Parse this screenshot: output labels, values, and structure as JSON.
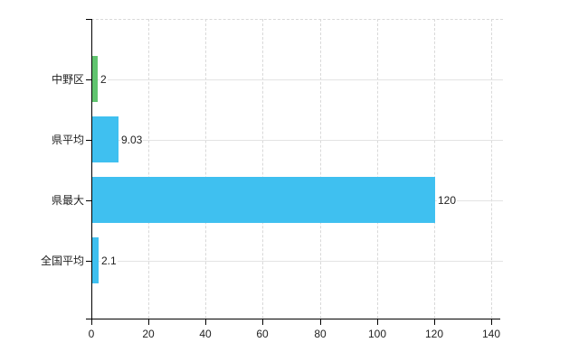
{
  "chart_data": {
    "type": "bar",
    "orientation": "horizontal",
    "title": "",
    "xlabel": "",
    "ylabel": "",
    "categories": [
      "中野区",
      "県平均",
      "県最大",
      "全国平均"
    ],
    "values": [
      2,
      9.03,
      120,
      2.1
    ],
    "value_labels": [
      "2",
      "9.03",
      "120",
      "2.1"
    ],
    "bar_colors": [
      "#61c46f",
      "#3fc0f0",
      "#3fc0f0",
      "#3fc0f0"
    ],
    "xlim": [
      0,
      140
    ],
    "x_ticks": [
      0,
      20,
      40,
      60,
      80,
      100,
      120,
      140
    ],
    "x_tick_labels": [
      "0",
      "20",
      "40",
      "60",
      "80",
      "100",
      "120",
      "140"
    ],
    "grid": true,
    "legend": false,
    "background_color": "#ffffff",
    "axis_color": "#000000",
    "gridline_color": "#d9d9d9",
    "text_color": "#222222"
  }
}
